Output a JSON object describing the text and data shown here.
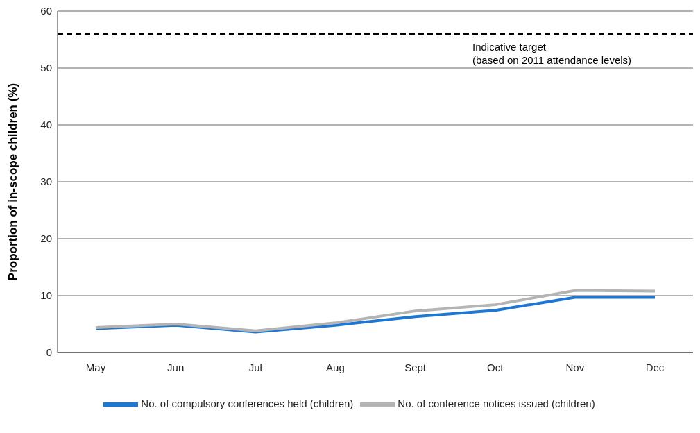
{
  "chart_data": {
    "type": "line",
    "ylabel": "Proportion of in-scope children (%)",
    "categories": [
      "May",
      "Jun",
      "Jul",
      "Aug",
      "Sept",
      "Oct",
      "Nov",
      "Dec"
    ],
    "series": [
      {
        "name": "No. of compulsory conferences held (children)",
        "color": "#1f77d4",
        "values": [
          4.2,
          4.8,
          3.6,
          4.8,
          6.3,
          7.4,
          9.7,
          9.7
        ]
      },
      {
        "name": "No. of conference notices issued (children)",
        "color": "#b4b4b4",
        "values": [
          4.4,
          5.0,
          3.8,
          5.2,
          7.3,
          8.4,
          10.9,
          10.8
        ]
      }
    ],
    "ylim": [
      0,
      60
    ],
    "yticks": [
      0,
      10,
      20,
      30,
      40,
      50,
      60
    ],
    "grid": "y",
    "legend": "bottom",
    "marker": "none",
    "line_style": "solid",
    "ref_lines": [
      {
        "axis": "y",
        "value": 56,
        "label": "Indicative target\n(based on 2011 attendance levels)",
        "color": "#000000",
        "line_style": "dashed"
      }
    ]
  }
}
